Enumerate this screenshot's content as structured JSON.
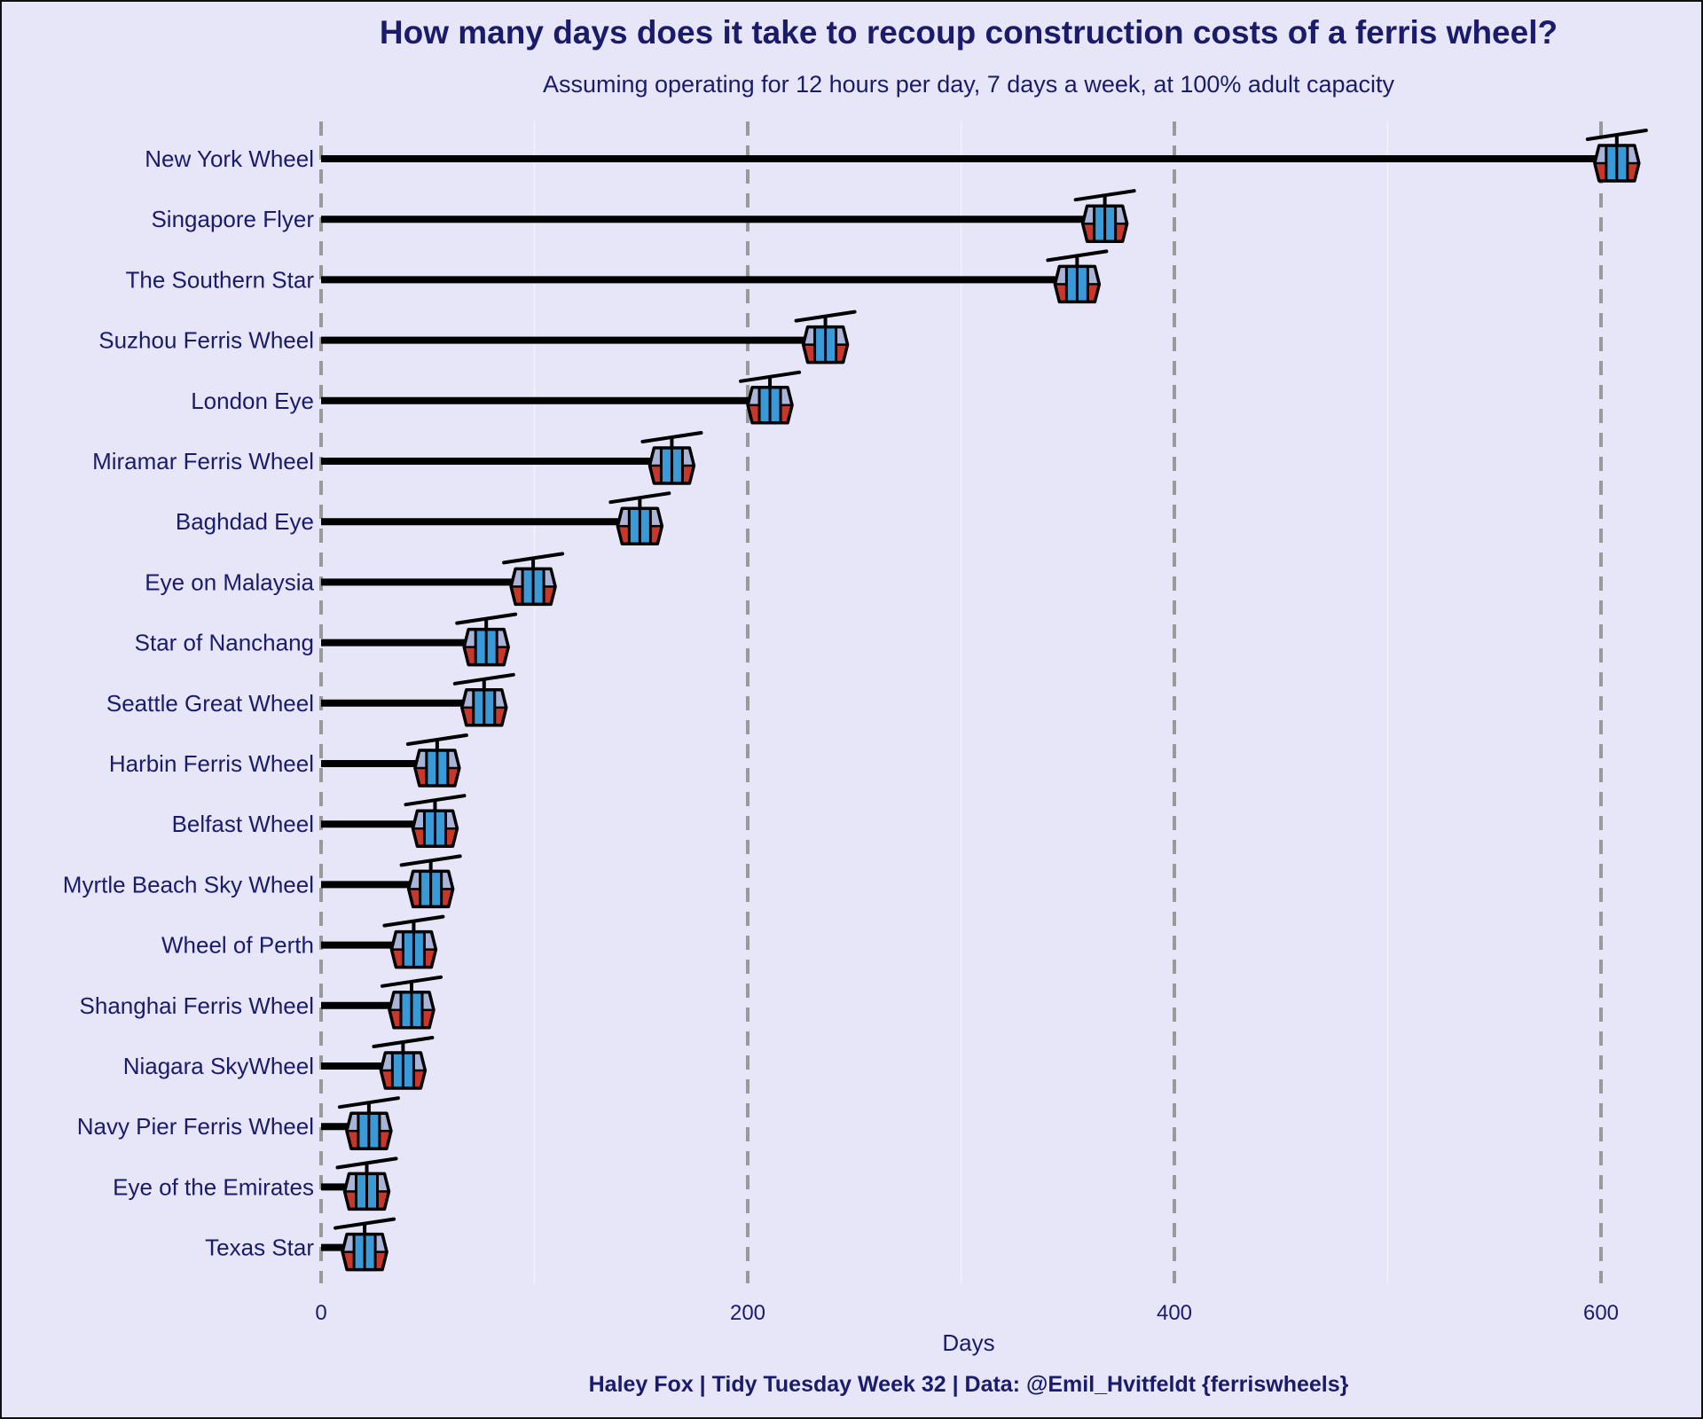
{
  "title": "How many days does it take to recoup construction costs of a ferris wheel?",
  "subtitle": "Assuming operating for 12 hours per day, 7 days a week, at 100% adult capacity",
  "caption": "Haley Fox |  Tidy Tuesday Week 32 | Data: @Emil_Hvitfeldt {ferriswheels}",
  "colors": {
    "background": "#e6e6f8",
    "text": "#1b1b6b",
    "gondola_top": "#a9b4d8",
    "gondola_bottom": "#c8382a",
    "gondola_stripes": "#3a9ad8",
    "reference_lines": "#999999"
  },
  "chart_data": {
    "type": "bar",
    "xlabel": "Days",
    "ylabel": "",
    "xlim": [
      0,
      612
    ],
    "xticks": [
      "0",
      "200",
      "400",
      "600"
    ],
    "reference_lines": [
      0,
      200,
      400,
      600
    ],
    "marker_icon": "gondola-icon",
    "categories": [
      "New York Wheel",
      "Singapore Flyer",
      "The Southern Star",
      "Suzhou Ferris Wheel",
      "London Eye",
      "Miramar Ferris Wheel",
      "Baghdad Eye",
      "Eye on Malaysia",
      "Star of Nanchang",
      "Seattle Great Wheel",
      "Harbin Ferris Wheel",
      "Belfast Wheel",
      "Myrtle Beach Sky Wheel",
      "Wheel of Perth",
      "Shanghai Ferris Wheel",
      "Niagara SkyWheel",
      "Navy Pier Ferris Wheel",
      "Eye of the Emirates",
      "Texas Star"
    ],
    "values": [
      607,
      367,
      354,
      236,
      210,
      164,
      149,
      99,
      77,
      76,
      54,
      53,
      51,
      43,
      42,
      38,
      22,
      21,
      20
    ]
  }
}
